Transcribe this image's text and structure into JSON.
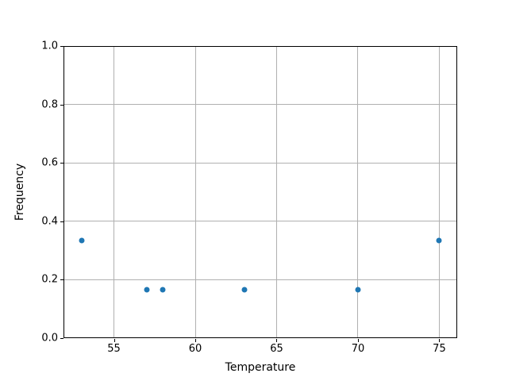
{
  "figure": {
    "background_color": "#ffffff",
    "text_color": "#000000"
  },
  "chart_data": {
    "type": "scatter",
    "title": "",
    "xlabel": "Temperature",
    "ylabel": "Frequency",
    "points": [
      {
        "x": 53,
        "y": 0.333
      },
      {
        "x": 57,
        "y": 0.167
      },
      {
        "x": 58,
        "y": 0.167
      },
      {
        "x": 63,
        "y": 0.167
      },
      {
        "x": 70,
        "y": 0.167
      },
      {
        "x": 75,
        "y": 0.333
      }
    ],
    "xlim": [
      51.9,
      76.1
    ],
    "ylim": [
      0.0,
      1.0
    ],
    "xticks": [
      {
        "value": 55,
        "label": "55"
      },
      {
        "value": 60,
        "label": "60"
      },
      {
        "value": 65,
        "label": "65"
      },
      {
        "value": 70,
        "label": "70"
      },
      {
        "value": 75,
        "label": "75"
      }
    ],
    "yticks": [
      {
        "value": 0.0,
        "label": "0.0"
      },
      {
        "value": 0.2,
        "label": "0.2"
      },
      {
        "value": 0.4,
        "label": "0.4"
      },
      {
        "value": 0.6,
        "label": "0.6"
      },
      {
        "value": 0.8,
        "label": "0.8"
      },
      {
        "value": 1.0,
        "label": "1.0"
      }
    ],
    "grid": true,
    "legend": null,
    "marker_color": "#1f77b4",
    "grid_color": "#b0b0b0",
    "axis_color": "#000000"
  }
}
